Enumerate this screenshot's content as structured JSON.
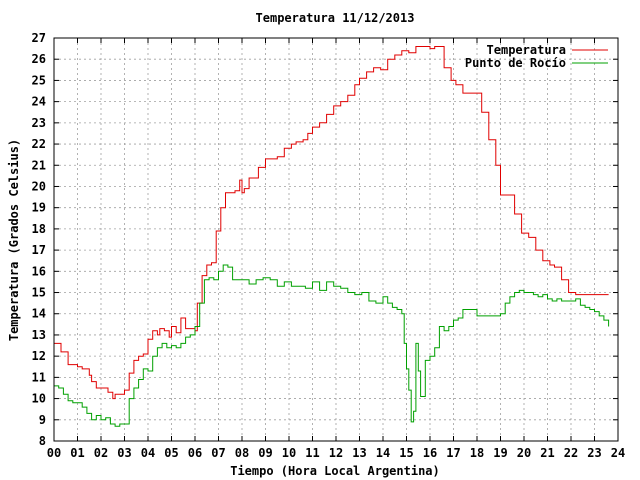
{
  "chart_data": {
    "type": "line",
    "title": "Temperatura 11/12/2013",
    "xlabel": "Tiempo (Hora Local Argentina)",
    "ylabel": "Temperatura (Grados Celsius)",
    "xlim": [
      0,
      24
    ],
    "ylim": [
      8,
      27
    ],
    "x_ticks": [
      0,
      1,
      2,
      3,
      4,
      5,
      6,
      7,
      8,
      9,
      10,
      11,
      12,
      13,
      14,
      15,
      16,
      17,
      18,
      19,
      20,
      21,
      22,
      23,
      24
    ],
    "x_tick_labels": [
      "00",
      "01",
      "02",
      "03",
      "04",
      "05",
      "06",
      "07",
      "08",
      "09",
      "10",
      "11",
      "12",
      "13",
      "14",
      "15",
      "16",
      "17",
      "18",
      "19",
      "20",
      "21",
      "22",
      "23",
      "24"
    ],
    "y_ticks": [
      8,
      9,
      10,
      11,
      12,
      13,
      14,
      15,
      16,
      17,
      18,
      19,
      20,
      21,
      22,
      23,
      24,
      25,
      26,
      27
    ],
    "grid": true,
    "legend_position": "top-right",
    "series": [
      {
        "name": "Temperatura",
        "color": "#e00000",
        "x": [
          0,
          0.3,
          0.6,
          0.9,
          1.0,
          1.2,
          1.5,
          1.6,
          1.8,
          2.0,
          2.1,
          2.3,
          2.5,
          2.6,
          2.8,
          3.0,
          3.2,
          3.4,
          3.6,
          3.8,
          4.0,
          4.2,
          4.4,
          4.5,
          4.7,
          4.9,
          5.0,
          5.2,
          5.4,
          5.6,
          5.8,
          6.0,
          6.1,
          6.3,
          6.5,
          6.7,
          6.9,
          7.1,
          7.3,
          7.5,
          7.7,
          7.9,
          8.0,
          8.1,
          8.3,
          8.5,
          8.7,
          9.0,
          9.2,
          9.5,
          9.8,
          10.1,
          10.3,
          10.6,
          10.8,
          11.0,
          11.3,
          11.6,
          11.9,
          12.2,
          12.5,
          12.8,
          13.0,
          13.3,
          13.6,
          13.9,
          14.2,
          14.5,
          14.8,
          15.1,
          15.4,
          15.7,
          16.0,
          16.2,
          16.4,
          16.6,
          16.9,
          17.1,
          17.4,
          17.6,
          17.9,
          18.2,
          18.5,
          18.8,
          19.0,
          19.3,
          19.6,
          19.9,
          20.2,
          20.5,
          20.8,
          21.1,
          21.3,
          21.6,
          21.9,
          22.2,
          22.5,
          22.8,
          23.1,
          23.4,
          23.6
        ],
        "values": [
          12.6,
          12.2,
          11.6,
          11.6,
          11.5,
          11.4,
          11.1,
          10.8,
          10.5,
          10.5,
          10.5,
          10.3,
          10.0,
          10.2,
          10.2,
          10.4,
          11.2,
          11.8,
          12.0,
          12.1,
          12.8,
          13.2,
          13.0,
          13.3,
          13.2,
          12.9,
          13.4,
          13.1,
          13.8,
          13.3,
          13.3,
          13.2,
          14.5,
          15.8,
          16.3,
          16.4,
          17.9,
          19.0,
          19.7,
          19.7,
          19.8,
          20.3,
          19.7,
          19.9,
          20.4,
          20.4,
          20.9,
          21.3,
          21.3,
          21.4,
          21.8,
          22.0,
          22.1,
          22.2,
          22.5,
          22.8,
          23.0,
          23.4,
          23.8,
          24.0,
          24.3,
          24.8,
          25.1,
          25.4,
          25.6,
          25.5,
          26.0,
          26.2,
          26.4,
          26.3,
          26.6,
          26.6,
          26.5,
          26.6,
          26.6,
          25.6,
          25.0,
          24.8,
          24.4,
          24.4,
          24.4,
          23.5,
          22.2,
          21.0,
          19.6,
          19.6,
          18.7,
          17.8,
          17.6,
          17.0,
          16.5,
          16.3,
          16.2,
          15.6,
          15.0,
          14.9,
          14.9,
          14.9,
          14.9,
          14.9,
          14.9
        ]
      },
      {
        "name": "Punto de Rocío",
        "color": "#00a000",
        "x": [
          0,
          0.2,
          0.4,
          0.6,
          0.8,
          1.0,
          1.2,
          1.4,
          1.6,
          1.8,
          2.0,
          2.2,
          2.4,
          2.6,
          2.8,
          3.0,
          3.2,
          3.4,
          3.6,
          3.8,
          4.0,
          4.2,
          4.4,
          4.6,
          4.8,
          5.0,
          5.2,
          5.4,
          5.6,
          5.8,
          6.0,
          6.2,
          6.4,
          6.6,
          6.8,
          7.0,
          7.2,
          7.4,
          7.6,
          7.8,
          8.0,
          8.3,
          8.6,
          8.9,
          9.2,
          9.5,
          9.8,
          10.1,
          10.4,
          10.7,
          11.0,
          11.3,
          11.6,
          11.9,
          12.2,
          12.5,
          12.8,
          13.1,
          13.4,
          13.7,
          14.0,
          14.2,
          14.4,
          14.6,
          14.8,
          14.9,
          15.0,
          15.1,
          15.2,
          15.3,
          15.4,
          15.5,
          15.6,
          15.8,
          16.0,
          16.2,
          16.4,
          16.6,
          16.8,
          17.0,
          17.2,
          17.4,
          17.6,
          17.8,
          18.0,
          18.2,
          18.4,
          18.6,
          18.8,
          19.0,
          19.2,
          19.4,
          19.6,
          19.8,
          20.0,
          20.2,
          20.4,
          20.6,
          20.8,
          21.0,
          21.2,
          21.4,
          21.6,
          21.8,
          22.0,
          22.2,
          22.4,
          22.6,
          22.8,
          23.0,
          23.2,
          23.4,
          23.6
        ],
        "values": [
          10.6,
          10.5,
          10.2,
          9.9,
          9.8,
          9.8,
          9.6,
          9.3,
          9.0,
          9.2,
          9.0,
          9.1,
          8.8,
          8.7,
          8.8,
          8.8,
          10.0,
          10.5,
          10.9,
          11.4,
          11.3,
          12.0,
          12.4,
          12.6,
          12.4,
          12.5,
          12.4,
          12.6,
          12.9,
          13.0,
          13.4,
          14.5,
          15.6,
          15.7,
          15.6,
          16.0,
          16.3,
          16.2,
          15.6,
          15.6,
          15.6,
          15.4,
          15.6,
          15.7,
          15.6,
          15.3,
          15.5,
          15.3,
          15.3,
          15.2,
          15.5,
          15.1,
          15.5,
          15.3,
          15.2,
          15.0,
          14.9,
          15.0,
          14.6,
          14.5,
          14.8,
          14.5,
          14.3,
          14.2,
          14.0,
          12.6,
          11.4,
          10.4,
          8.9,
          9.4,
          12.6,
          11.3,
          10.1,
          11.8,
          12.0,
          12.4,
          13.4,
          13.2,
          13.4,
          13.7,
          13.8,
          14.2,
          14.2,
          14.2,
          13.9,
          13.9,
          13.9,
          13.9,
          13.9,
          14.0,
          14.5,
          14.8,
          15.0,
          15.1,
          15.0,
          15.0,
          14.9,
          14.8,
          14.9,
          14.7,
          14.6,
          14.7,
          14.6,
          14.6,
          14.6,
          14.7,
          14.4,
          14.3,
          14.2,
          14.1,
          13.9,
          13.7,
          13.4
        ]
      }
    ]
  }
}
